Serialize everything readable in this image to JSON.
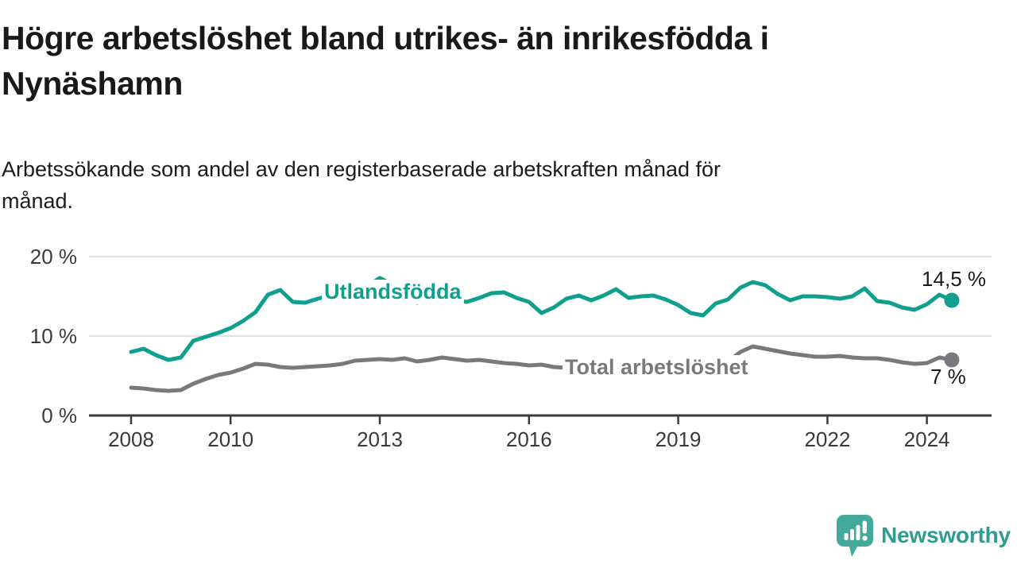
{
  "title_lines": [
    "Högre arbetslöshet bland utrikes- än inrikesfödda i",
    "Nynäshamn"
  ],
  "subtitle_lines": [
    "Arbetssökande som andel av den registerbaserade arbetskraften månad för",
    "månad."
  ],
  "branding": {
    "name": "Newsworthy",
    "icon": "speech-bubble-bar-chart-exclamation-icon",
    "icon_color": "#44a89a",
    "wordmark_color": "#2f9c90"
  },
  "colors": {
    "accent_teal": "#109f8d",
    "series_gray": "#77797c",
    "axis": "#3b3b3b",
    "axis_text": "#3a3a3a",
    "gridline": "#d9d9d9",
    "text": "#191919",
    "background": "#ffffff"
  },
  "chart_data": {
    "type": "line",
    "title": "Högre arbetslöshet bland utrikes- än inrikesfödda i Nynäshamn",
    "subtitle": "Arbetssökande som andel av den registerbaserade arbetskraften månad för månad.",
    "xlabel": "",
    "ylabel": "",
    "grid": "horizontal",
    "legend_position": "inline-labels-on-lines",
    "xlim": [
      2007.15,
      2025.35
    ],
    "ylim": [
      0,
      21.5
    ],
    "x_ticks": [
      2008,
      2010,
      2013,
      2016,
      2019,
      2022,
      2024
    ],
    "x_tick_labels": [
      "2008",
      "2010",
      "2013",
      "2016",
      "2019",
      "2022",
      "2024"
    ],
    "y_ticks": [
      0,
      10,
      20
    ],
    "y_tick_labels": [
      "0 %",
      "10 %",
      "20 %"
    ],
    "x": [
      2008,
      2008.25,
      2008.5,
      2008.75,
      2009,
      2009.25,
      2009.5,
      2009.75,
      2010,
      2010.25,
      2010.5,
      2010.75,
      2011,
      2011.25,
      2011.5,
      2011.75,
      2012,
      2012.25,
      2012.5,
      2012.75,
      2013,
      2013.25,
      2013.5,
      2013.75,
      2014,
      2014.25,
      2014.5,
      2014.75,
      2015,
      2015.25,
      2015.5,
      2015.75,
      2016,
      2016.25,
      2016.5,
      2016.75,
      2017,
      2017.25,
      2017.5,
      2017.75,
      2018,
      2018.25,
      2018.5,
      2018.75,
      2019,
      2019.25,
      2019.5,
      2019.75,
      2020,
      2020.25,
      2020.5,
      2020.75,
      2021,
      2021.25,
      2021.5,
      2021.75,
      2022,
      2022.25,
      2022.5,
      2022.75,
      2023,
      2023.25,
      2023.5,
      2023.75,
      2024,
      2024.25,
      2024.5
    ],
    "series": [
      {
        "name": "Utlandsfödda",
        "color": "#109f8d",
        "end_label": "14,5 %",
        "end_value": 14.5,
        "values": [
          8.0,
          8.4,
          7.6,
          7.0,
          7.3,
          9.4,
          9.9,
          10.4,
          11.0,
          11.9,
          13.0,
          15.2,
          15.8,
          14.3,
          14.2,
          14.7,
          15.1,
          15.4,
          15.7,
          16.3,
          17.3,
          16.5,
          15.2,
          14.2,
          14.7,
          15.1,
          14.5,
          14.3,
          14.8,
          15.4,
          15.5,
          14.8,
          14.3,
          12.9,
          13.6,
          14.7,
          15.1,
          14.5,
          15.1,
          15.9,
          14.8,
          15.0,
          15.1,
          14.6,
          13.9,
          12.9,
          12.6,
          14.1,
          14.6,
          16.1,
          16.8,
          16.4,
          15.3,
          14.5,
          15.0,
          15.0,
          14.9,
          14.7,
          15.0,
          16.0,
          14.4,
          14.2,
          13.6,
          13.3,
          14.0,
          15.2,
          14.5
        ]
      },
      {
        "name": "Total arbetslöshet",
        "color": "#77797c",
        "end_label": "7 %",
        "end_value": 7.0,
        "values": [
          3.5,
          3.4,
          3.2,
          3.1,
          3.2,
          4.0,
          4.6,
          5.1,
          5.4,
          5.9,
          6.5,
          6.4,
          6.1,
          6.0,
          6.1,
          6.2,
          6.3,
          6.5,
          6.9,
          7.0,
          7.1,
          7.0,
          7.2,
          6.8,
          7.0,
          7.3,
          7.1,
          6.9,
          7.0,
          6.8,
          6.6,
          6.5,
          6.3,
          6.4,
          6.1,
          6.0,
          6.1,
          5.9,
          5.8,
          5.9,
          5.9,
          5.8,
          5.7,
          5.8,
          5.8,
          5.9,
          6.0,
          6.3,
          6.8,
          8.0,
          8.7,
          8.4,
          8.1,
          7.8,
          7.6,
          7.4,
          7.4,
          7.5,
          7.3,
          7.2,
          7.2,
          7.0,
          6.7,
          6.5,
          6.6,
          7.3,
          7.0
        ]
      }
    ]
  }
}
